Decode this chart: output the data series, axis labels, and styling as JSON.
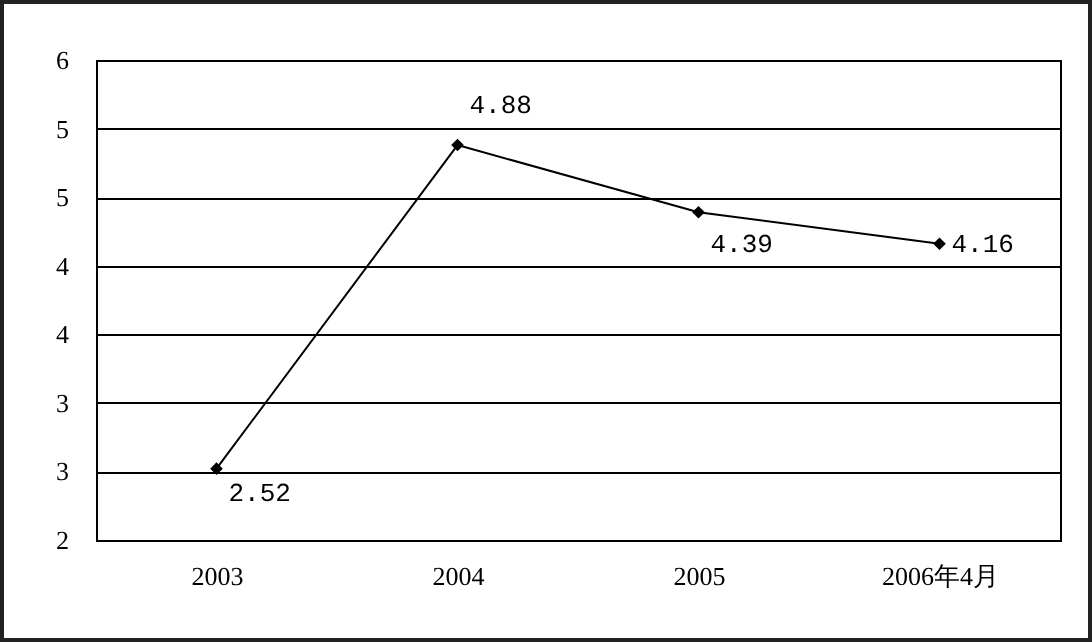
{
  "chart_data": {
    "type": "line",
    "categories": [
      "2003",
      "2004",
      "2005",
      "2006年4月"
    ],
    "series": [
      {
        "color": "#000000",
        "values": [
          2.52,
          4.88,
          4.39,
          4.16
        ]
      }
    ],
    "ylim": [
      2,
      5.5
    ],
    "yticks": [
      2,
      {
        "value": 2.5,
        "label": "3"
      },
      3,
      {
        "value": 3.5,
        "label": "4"
      },
      4,
      {
        "value": 4.5,
        "label": "5"
      },
      5,
      {
        "value": 5.5,
        "label": "6"
      }
    ],
    "grid": "y",
    "marker": "diamond",
    "line_style": "solid",
    "data_labels": true
  }
}
